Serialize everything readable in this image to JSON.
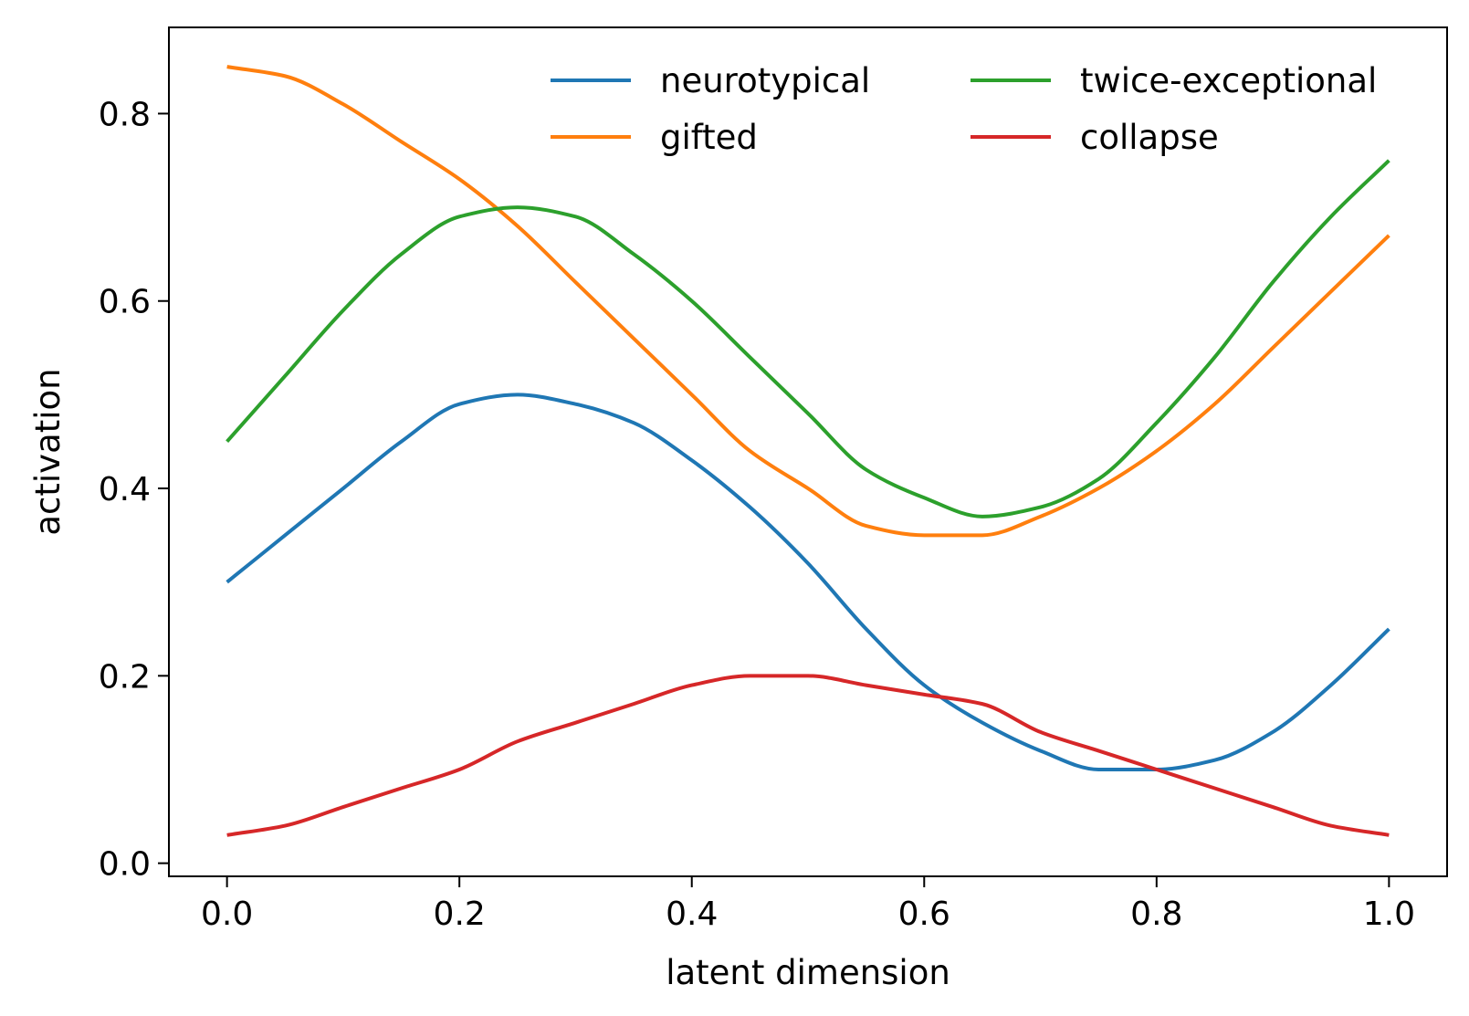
{
  "chart_data": {
    "type": "line",
    "title": "",
    "xlabel": "latent dimension",
    "ylabel": "activation",
    "xlim": [
      -0.05,
      1.05
    ],
    "ylim": [
      -0.014,
      0.892
    ],
    "xticks": [
      0.0,
      0.2,
      0.4,
      0.6,
      0.8,
      1.0
    ],
    "yticks": [
      0.0,
      0.2,
      0.4,
      0.6,
      0.8
    ],
    "xtick_labels": [
      "0.0",
      "0.2",
      "0.4",
      "0.6",
      "0.8",
      "1.0"
    ],
    "ytick_labels": [
      "0.0",
      "0.2",
      "0.4",
      "0.6",
      "0.8"
    ],
    "grid": false,
    "legend": {
      "position": "top-right",
      "columns": 2
    },
    "x": [
      0.0,
      0.05,
      0.1,
      0.15,
      0.2,
      0.25,
      0.3,
      0.35,
      0.4,
      0.45,
      0.5,
      0.55,
      0.6,
      0.65,
      0.7,
      0.75,
      0.8,
      0.85,
      0.9,
      0.95,
      1.0
    ],
    "series": [
      {
        "name": "neurotypical",
        "color": "#1f77b4",
        "values": [
          0.3,
          0.35,
          0.4,
          0.45,
          0.49,
          0.5,
          0.49,
          0.47,
          0.43,
          0.38,
          0.32,
          0.25,
          0.19,
          0.15,
          0.12,
          0.1,
          0.1,
          0.11,
          0.14,
          0.19,
          0.25
        ]
      },
      {
        "name": "gifted",
        "color": "#ff7f0e",
        "values": [
          0.85,
          0.84,
          0.81,
          0.77,
          0.73,
          0.68,
          0.62,
          0.56,
          0.5,
          0.44,
          0.4,
          0.36,
          0.35,
          0.35,
          0.37,
          0.4,
          0.44,
          0.49,
          0.55,
          0.61,
          0.67
        ]
      },
      {
        "name": "twice-exceptional",
        "color": "#2ca02c",
        "values": [
          0.45,
          0.52,
          0.59,
          0.65,
          0.69,
          0.7,
          0.69,
          0.65,
          0.6,
          0.54,
          0.48,
          0.42,
          0.39,
          0.37,
          0.38,
          0.41,
          0.47,
          0.54,
          0.62,
          0.69,
          0.75
        ]
      },
      {
        "name": "collapse",
        "color": "#d62728",
        "values": [
          0.03,
          0.04,
          0.06,
          0.08,
          0.1,
          0.13,
          0.15,
          0.17,
          0.19,
          0.2,
          0.2,
          0.19,
          0.18,
          0.17,
          0.14,
          0.12,
          0.1,
          0.08,
          0.06,
          0.04,
          0.03
        ]
      }
    ]
  }
}
